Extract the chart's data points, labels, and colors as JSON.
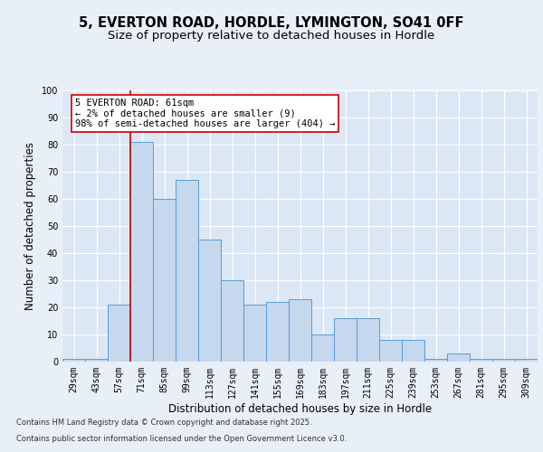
{
  "title_line1": "5, EVERTON ROAD, HORDLE, LYMINGTON, SO41 0FF",
  "title_line2": "Size of property relative to detached houses in Hordle",
  "xlabel": "Distribution of detached houses by size in Hordle",
  "ylabel": "Number of detached properties",
  "categories": [
    "29sqm",
    "43sqm",
    "57sqm",
    "71sqm",
    "85sqm",
    "99sqm",
    "113sqm",
    "127sqm",
    "141sqm",
    "155sqm",
    "169sqm",
    "183sqm",
    "197sqm",
    "211sqm",
    "225sqm",
    "239sqm",
    "253sqm",
    "267sqm",
    "281sqm",
    "295sqm",
    "309sqm"
  ],
  "values": [
    1,
    1,
    21,
    81,
    60,
    67,
    45,
    30,
    21,
    22,
    23,
    10,
    16,
    16,
    8,
    8,
    1,
    3,
    1,
    1,
    1
  ],
  "bar_color": "#c5d8ee",
  "bar_edge_color": "#5b9bd5",
  "background_color": "#e8eff8",
  "plot_bg_color": "#dce7f5",
  "vline_index": 2,
  "vline_color": "#cc0000",
  "annotation_text": "5 EVERTON ROAD: 61sqm\n← 2% of detached houses are smaller (9)\n98% of semi-detached houses are larger (404) →",
  "annotation_box_color": "#ffffff",
  "annotation_box_edge": "#cc0000",
  "ylim": [
    0,
    100
  ],
  "yticks": [
    0,
    10,
    20,
    30,
    40,
    50,
    60,
    70,
    80,
    90,
    100
  ],
  "footer_line1": "Contains HM Land Registry data © Crown copyright and database right 2025.",
  "footer_line2": "Contains public sector information licensed under the Open Government Licence v3.0.",
  "title_fontsize": 10.5,
  "subtitle_fontsize": 9.5,
  "tick_fontsize": 7,
  "ylabel_fontsize": 8.5,
  "xlabel_fontsize": 8.5,
  "annotation_fontsize": 7.5,
  "footer_fontsize": 6
}
